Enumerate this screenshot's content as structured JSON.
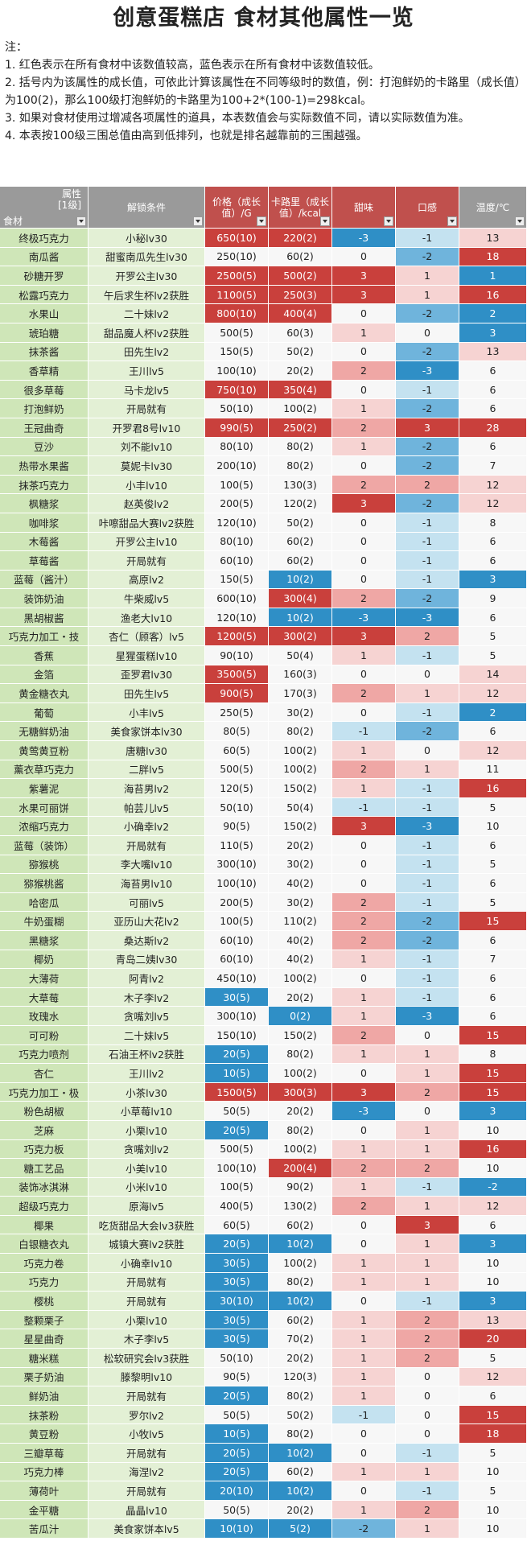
{
  "title": "创意蛋糕店 食材其他属性一览",
  "notes": [
    "注：",
    "1. 红色表示在所有食材中该数值较高，蓝色表示在所有食材中该数值较低。",
    "2. 括号内为该属性的成长值，可依此计算该属性在不同等级时的数值，例：打泡鲜奶的卡路里（成长值）为100(2)，那么100级打泡鲜奶的卡路里为100+2*(100-1)=298kcal。",
    "3. 如果对食材使用过增减各项属性的道具，本表数值会与实际数值不同，请以实际数值为准。",
    "4. 本表按100级三围总值由高到低排列，也就是排名越靠前的三围越强。"
  ],
  "table": {
    "corner": {
      "top": "属性",
      "level": "[1级]",
      "bottom": "食材"
    },
    "headers": [
      "解锁条件",
      "价格（成长值）/G",
      "卡路里（成长值）/kcal",
      "甜味",
      "口感",
      "温度/℃"
    ],
    "rows": [
      [
        "终极巧克力",
        "小秘lv30",
        "650(10)",
        "220(2)",
        -3,
        -1,
        13
      ],
      [
        "南瓜酱",
        "甜蜜南瓜先生lv30",
        "250(10)",
        "60(2)",
        0,
        -2,
        18
      ],
      [
        "砂糖开罗",
        "开罗公主lv30",
        "2500(5)",
        "500(2)",
        3,
        1,
        1
      ],
      [
        "松露巧克力",
        "午后求生杯lv2获胜",
        "1100(5)",
        "250(3)",
        3,
        1,
        16
      ],
      [
        "水果山",
        "二十妹lv2",
        "800(10)",
        "400(4)",
        0,
        -2,
        2
      ],
      [
        "琥珀糖",
        "甜品魔人杯lv2获胜",
        "500(5)",
        "60(3)",
        1,
        0,
        3
      ],
      [
        "抹茶酱",
        "田先生lv2",
        "150(5)",
        "50(2)",
        0,
        -2,
        13
      ],
      [
        "香草精",
        "王川lv5",
        "100(10)",
        "20(2)",
        2,
        -3,
        6
      ],
      [
        "很多草莓",
        "马卡龙lv5",
        "750(10)",
        "350(4)",
        0,
        -1,
        6
      ],
      [
        "打泡鲜奶",
        "开局就有",
        "50(10)",
        "100(2)",
        1,
        -2,
        6
      ],
      [
        "王冠曲奇",
        "开罗君8号lv10",
        "990(5)",
        "250(2)",
        2,
        3,
        28
      ],
      [
        "豆沙",
        "刘不能lv10",
        "80(10)",
        "80(2)",
        1,
        -2,
        6
      ],
      [
        "热带水果酱",
        "莫妮卡lv30",
        "200(10)",
        "80(2)",
        0,
        -2,
        7
      ],
      [
        "抹茶巧克力",
        "小丰lv10",
        "100(5)",
        "130(3)",
        2,
        2,
        12
      ],
      [
        "枫糖浆",
        "赵英俊lv2",
        "200(5)",
        "120(2)",
        3,
        -2,
        12
      ],
      [
        "咖啡浆",
        "咔嚓甜品大赛lv2获胜",
        "120(10)",
        "50(2)",
        0,
        -1,
        8
      ],
      [
        "木莓酱",
        "开罗公主lv10",
        "80(10)",
        "60(2)",
        0,
        -1,
        6
      ],
      [
        "草莓酱",
        "开局就有",
        "60(10)",
        "60(2)",
        0,
        -1,
        6
      ],
      [
        "蓝莓（酱汁）",
        "高原lv2",
        "150(5)",
        "10(2)",
        0,
        -1,
        3
      ],
      [
        "装饰奶油",
        "牛柴威lv5",
        "600(10)",
        "300(4)",
        2,
        -2,
        9
      ],
      [
        "黑胡椒酱",
        "渔老大lv10",
        "120(10)",
        "10(2)",
        -3,
        -3,
        6
      ],
      [
        "巧克力加工・技",
        "杏仁（顾客）lv5",
        "1200(5)",
        "300(2)",
        3,
        2,
        5
      ],
      [
        "香蕉",
        "星猩蛋糕lv10",
        "90(10)",
        "50(4)",
        1,
        -1,
        5
      ],
      [
        "金箔",
        "歪罗君lv30",
        "3500(5)",
        "160(3)",
        0,
        0,
        14
      ],
      [
        "黄金糖衣丸",
        "田先生lv5",
        "900(5)",
        "170(3)",
        2,
        1,
        12
      ],
      [
        "葡萄",
        "小丰lv5",
        "250(5)",
        "30(2)",
        0,
        -1,
        2
      ],
      [
        "无糖鲜奶油",
        "美食家饼本lv30",
        "80(5)",
        "80(2)",
        -1,
        -2,
        6
      ],
      [
        "黄莺黄豆粉",
        "唐糖lv30",
        "60(5)",
        "100(2)",
        1,
        0,
        12
      ],
      [
        "薰衣草巧克力",
        "二胖lv5",
        "500(5)",
        "100(2)",
        2,
        1,
        11
      ],
      [
        "紫薯泥",
        "海苔男lv2",
        "120(5)",
        "150(2)",
        1,
        -1,
        16
      ],
      [
        "水果可丽饼",
        "帕芸儿lv5",
        "50(10)",
        "50(4)",
        -1,
        -1,
        5
      ],
      [
        "浓缩巧克力",
        "小确幸lv2",
        "90(5)",
        "150(2)",
        3,
        -3,
        10
      ],
      [
        "蓝莓（装饰）",
        "开局就有",
        "110(5)",
        "20(2)",
        0,
        -1,
        6
      ],
      [
        "猕猴桃",
        "李大嘴lv10",
        "300(10)",
        "30(2)",
        0,
        -1,
        5
      ],
      [
        "猕猴桃酱",
        "海苔男lv10",
        "100(10)",
        "40(2)",
        0,
        -1,
        6
      ],
      [
        "哈密瓜",
        "可丽lv5",
        "200(5)",
        "30(2)",
        2,
        -1,
        5
      ],
      [
        "牛奶蛋糊",
        "亚历山大花lv2",
        "100(5)",
        "110(2)",
        2,
        -2,
        15
      ],
      [
        "黑糖浆",
        "桑达斯lv2",
        "60(10)",
        "40(2)",
        2,
        -2,
        6
      ],
      [
        "椰奶",
        "青岛二姨lv30",
        "60(10)",
        "40(2)",
        1,
        -1,
        7
      ],
      [
        "大薄荷",
        "阿青lv2",
        "450(10)",
        "100(2)",
        0,
        -1,
        6
      ],
      [
        "大草莓",
        "木子李lv2",
        "30(5)",
        "20(2)",
        1,
        -1,
        6
      ],
      [
        "玫瑰水",
        "贪嘴刘lv5",
        "300(10)",
        "0(2)",
        1,
        -3,
        6
      ],
      [
        "可可粉",
        "二十妹lv5",
        "150(10)",
        "150(2)",
        2,
        0,
        15
      ],
      [
        "巧克力喷剂",
        "石油王杯lv2获胜",
        "20(5)",
        "80(2)",
        1,
        1,
        8
      ],
      [
        "杏仁",
        "王川lv2",
        "10(5)",
        "100(2)",
        0,
        1,
        15
      ],
      [
        "巧克力加工・极",
        "小茶lv30",
        "1500(5)",
        "300(3)",
        3,
        2,
        15
      ],
      [
        "粉色胡椒",
        "小草莓lv10",
        "50(5)",
        "20(2)",
        -3,
        0,
        3
      ],
      [
        "芝麻",
        "小栗lv10",
        "20(5)",
        "80(2)",
        0,
        1,
        10
      ],
      [
        "巧克力板",
        "贪嘴刘lv2",
        "500(5)",
        "100(2)",
        1,
        1,
        16
      ],
      [
        "糖工艺品",
        "小美lv10",
        "100(10)",
        "200(4)",
        2,
        2,
        10
      ],
      [
        "装饰冰淇淋",
        "小米lv10",
        "100(5)",
        "90(2)",
        1,
        -1,
        -2
      ],
      [
        "超级巧克力",
        "原海lv5",
        "400(5)",
        "130(2)",
        2,
        1,
        12
      ],
      [
        "椰果",
        "吃货甜品大会lv3获胜",
        "60(5)",
        "60(2)",
        0,
        3,
        6
      ],
      [
        "白银糖衣丸",
        "城镇大赛lv2获胜",
        "20(5)",
        "10(2)",
        0,
        1,
        3
      ],
      [
        "巧克力卷",
        "小确幸lv10",
        "30(5)",
        "100(2)",
        1,
        1,
        10
      ],
      [
        "巧克力",
        "开局就有",
        "30(5)",
        "80(2)",
        1,
        1,
        10
      ],
      [
        "樱桃",
        "开局就有",
        "30(10)",
        "10(2)",
        0,
        -1,
        3
      ],
      [
        "整颗栗子",
        "小栗lv10",
        "30(5)",
        "60(2)",
        1,
        2,
        13
      ],
      [
        "星星曲奇",
        "木子李lv5",
        "30(5)",
        "70(2)",
        1,
        2,
        20
      ],
      [
        "糖米糕",
        "松软研究会lv3获胜",
        "50(10)",
        "20(2)",
        1,
        2,
        5
      ],
      [
        "栗子奶油",
        "滕黎明lv10",
        "90(5)",
        "120(3)",
        1,
        0,
        12
      ],
      [
        "鲜奶油",
        "开局就有",
        "20(5)",
        "80(2)",
        1,
        0,
        6
      ],
      [
        "抹茶粉",
        "罗尔lv2",
        "50(5)",
        "50(2)",
        -1,
        0,
        15
      ],
      [
        "黄豆粉",
        "小牧lv5",
        "10(5)",
        "80(2)",
        0,
        0,
        18
      ],
      [
        "三瓣草莓",
        "开局就有",
        "20(5)",
        "10(2)",
        0,
        -1,
        5
      ],
      [
        "巧克力棒",
        "海涅lv2",
        "20(5)",
        "60(2)",
        1,
        1,
        10
      ],
      [
        "薄荷叶",
        "开局就有",
        "20(10)",
        "10(2)",
        0,
        -1,
        5
      ],
      [
        "金平糖",
        "晶晶lv10",
        "50(5)",
        "20(2)",
        1,
        2,
        10
      ],
      [
        "苦瓜汁",
        "美食家饼本lv5",
        "10(10)",
        "5(2)",
        -2,
        1,
        10
      ]
    ]
  }
}
